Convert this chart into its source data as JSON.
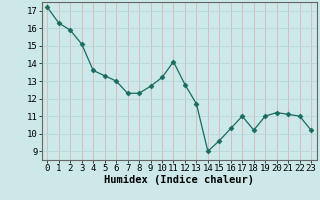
{
  "x": [
    0,
    1,
    2,
    3,
    4,
    5,
    6,
    7,
    8,
    9,
    10,
    11,
    12,
    13,
    14,
    15,
    16,
    17,
    18,
    19,
    20,
    21,
    22,
    23
  ],
  "y": [
    17.2,
    16.3,
    15.9,
    15.1,
    13.6,
    13.3,
    13.0,
    12.3,
    12.3,
    12.7,
    13.2,
    14.1,
    12.8,
    11.7,
    9.0,
    9.6,
    10.3,
    11.0,
    10.2,
    11.0,
    11.2,
    11.1,
    11.0,
    10.2
  ],
  "xlim": [
    -0.5,
    23.5
  ],
  "ylim": [
    8.5,
    17.5
  ],
  "yticks": [
    9,
    10,
    11,
    12,
    13,
    14,
    15,
    16,
    17
  ],
  "xticks": [
    0,
    1,
    2,
    3,
    4,
    5,
    6,
    7,
    8,
    9,
    10,
    11,
    12,
    13,
    14,
    15,
    16,
    17,
    18,
    19,
    20,
    21,
    22,
    23
  ],
  "xlabel": "Humidex (Indice chaleur)",
  "line_color": "#1a6b5e",
  "marker": "D",
  "marker_size": 2.5,
  "background_color": "#cce8e8",
  "grid_color_major": "#e8c8c8",
  "grid_color_minor": "#d8e8e8",
  "tick_label_fontsize": 6.5,
  "xlabel_fontsize": 7.5
}
